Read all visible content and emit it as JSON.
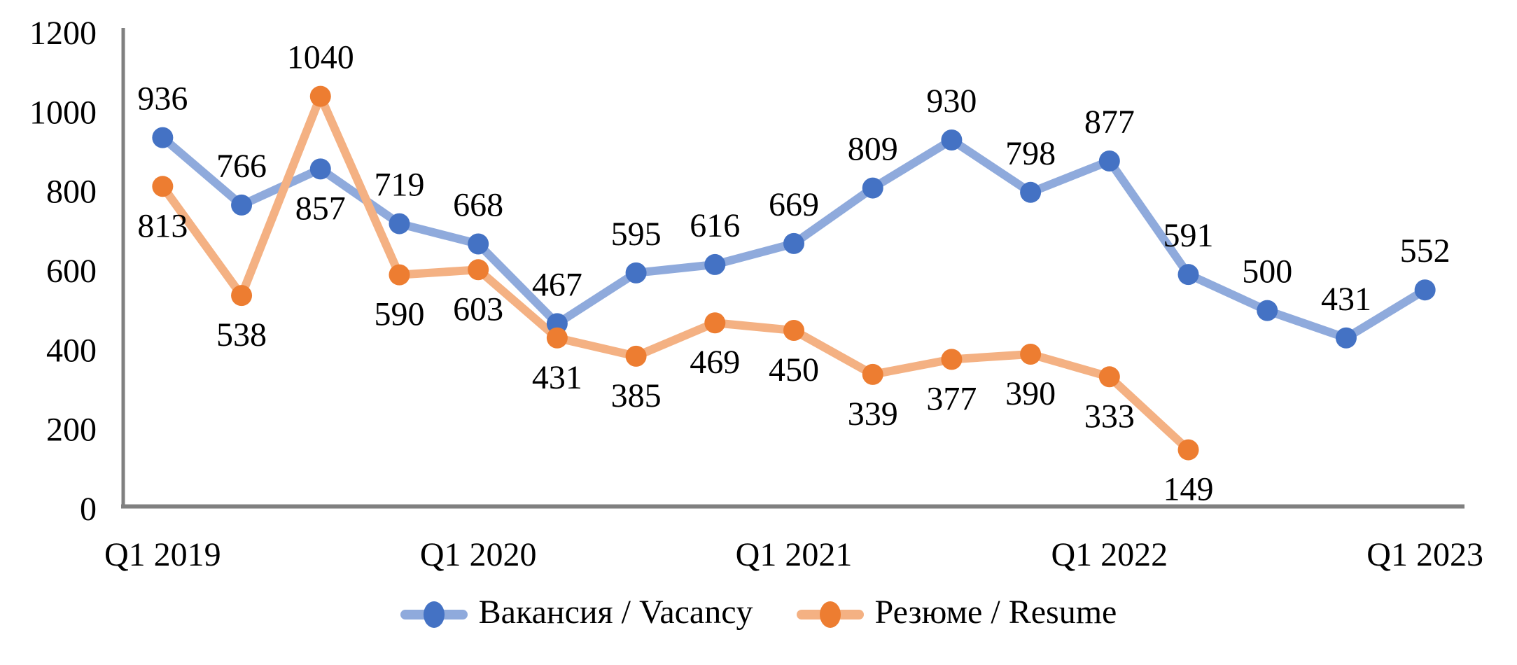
{
  "chart_data": {
    "type": "line",
    "title": "",
    "categories": [
      "Q1 2019",
      "Q2 2019",
      "Q3 2019",
      "Q4 2019",
      "Q1 2020",
      "Q2 2020",
      "Q3 2020",
      "Q4 2020",
      "Q1 2021",
      "Q2 2021",
      "Q3 2021",
      "Q4 2021",
      "Q1 2022",
      "Q2 2022",
      "Q3 2022",
      "Q4 2022",
      "Q1 2023"
    ],
    "x_tick_labels": [
      "Q1 2019",
      "Q1 2020",
      "Q1 2021",
      "Q1 2022",
      "Q1 2023"
    ],
    "x_tick_indices": [
      0,
      4,
      8,
      12,
      16
    ],
    "y_ticks": [
      0,
      200,
      400,
      600,
      800,
      1000,
      1200
    ],
    "ylim": [
      0,
      1200
    ],
    "grid": false,
    "legend_position": "bottom",
    "axis_color": "#808080",
    "text_color": "#000000",
    "series": [
      {
        "name": "Вакансия / Vacancy",
        "marker_color": "#4472C4",
        "line_color": "#8FAADC",
        "values": [
          936,
          766,
          857,
          719,
          668,
          467,
          595,
          616,
          669,
          809,
          930,
          798,
          877,
          591,
          500,
          431,
          552
        ],
        "label_default": "above",
        "label_overrides": {
          "2": {
            "pos": "below"
          }
        }
      },
      {
        "name": "Резюме / Resume",
        "marker_color": "#ED7D31",
        "line_color": "#F4B183",
        "values": [
          813,
          538,
          1040,
          590,
          603,
          431,
          385,
          469,
          450,
          339,
          377,
          390,
          333,
          149
        ],
        "label_default": "below",
        "label_overrides": {
          "2": {
            "pos": "above"
          }
        }
      }
    ]
  },
  "legend": {
    "items": [
      {
        "label": "Вакансия / Vacancy"
      },
      {
        "label": "Резюме / Resume"
      }
    ]
  }
}
